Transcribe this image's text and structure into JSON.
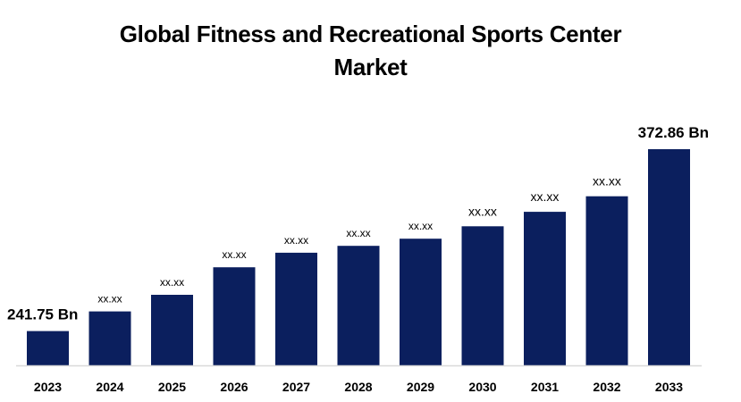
{
  "chart_data": {
    "type": "bar",
    "title_lines": [
      "Global Fitness and Recreational Sports Center",
      "Market"
    ],
    "categories": [
      "2023",
      "2024",
      "2025",
      "2026",
      "2027",
      "2028",
      "2029",
      "2030",
      "2031",
      "2032",
      "2033"
    ],
    "values": [
      241.75,
      255.9,
      267.9,
      287.7,
      298.2,
      303.2,
      308.3,
      317.3,
      327.7,
      338.9,
      372.86
    ],
    "data_labels": [
      "241.75 Bn",
      "xx.xx",
      "xx.xx",
      "xx.xx",
      "xx.xx",
      "xx.xx",
      "xx.xx",
      "xx.xx",
      "xx.xx",
      "xx.xx",
      "372.86 Bn"
    ],
    "bar_color": "#0b1f5e",
    "axis_color": "#d9d9d9",
    "ylim": [
      217,
      380
    ],
    "grid": false,
    "legend": "none"
  }
}
